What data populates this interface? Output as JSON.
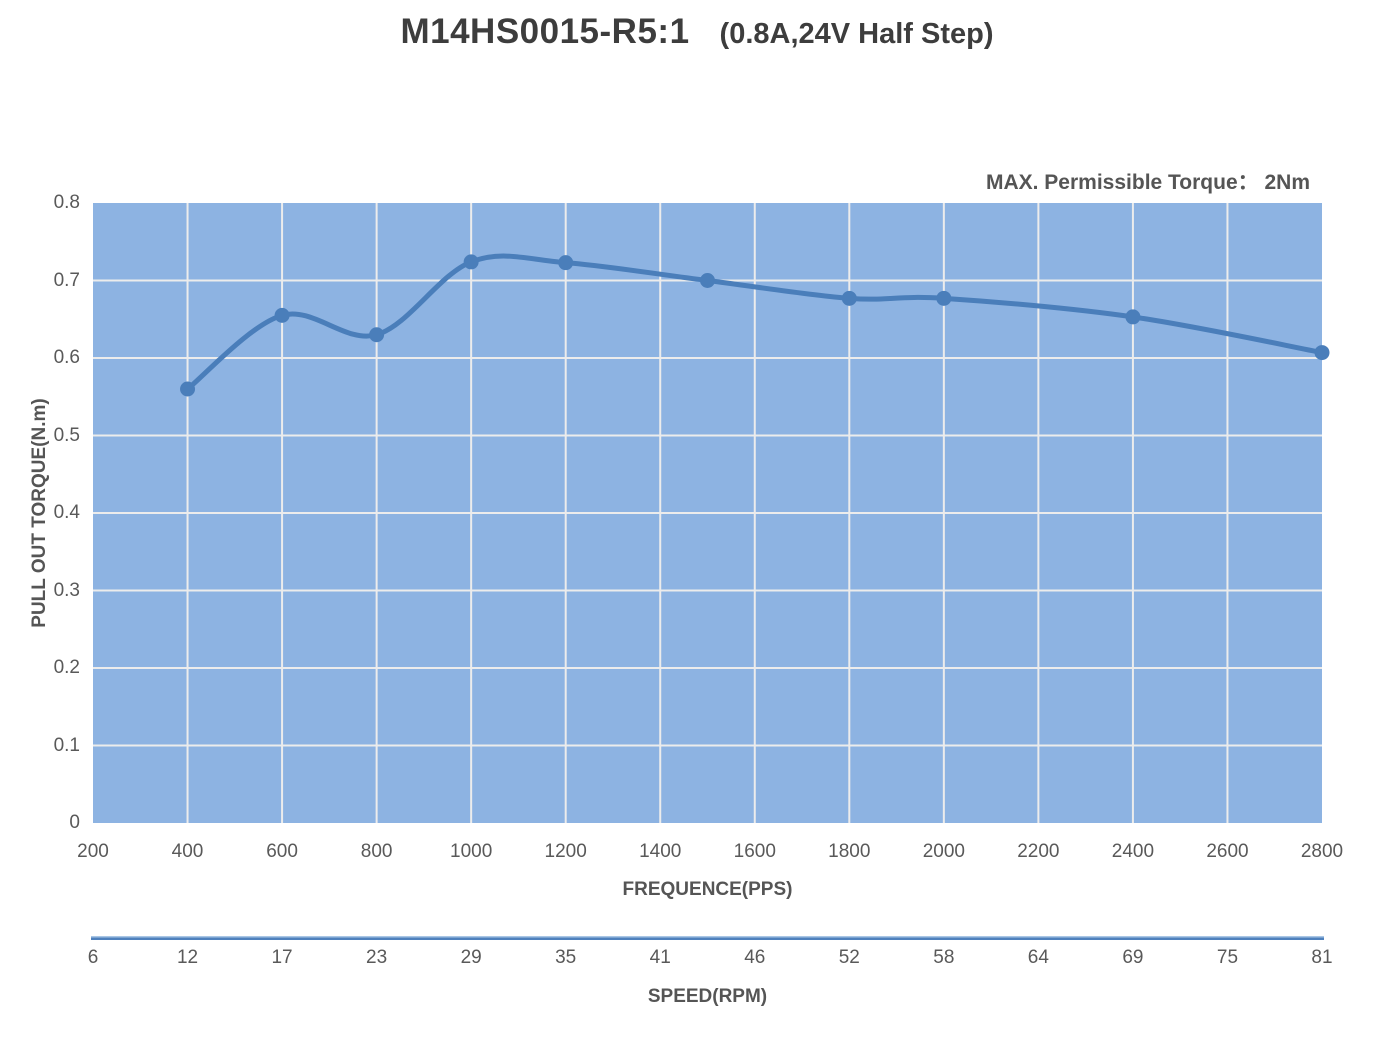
{
  "title": {
    "model": "M14HS0015-R5:1",
    "condition": "(0.8A,24V Half Step)"
  },
  "annotation": {
    "text": "MAX. Permissible Torque：  2Nm"
  },
  "chart_data": {
    "type": "line",
    "title": "M14HS0015-R5:1 (0.8A,24V Half Step)",
    "xlabel": "FREQUENCE(PPS)",
    "ylabel": "PULL OUT TORQUE(N.m)",
    "x2label": "SPEED(RPM)",
    "xlim": [
      200,
      2800
    ],
    "ylim": [
      0,
      0.8
    ],
    "grid": true,
    "legend": "none",
    "smooth": true,
    "x_ticks": [
      200,
      400,
      600,
      800,
      1000,
      1200,
      1400,
      1600,
      1800,
      2000,
      2200,
      2400,
      2600,
      2800
    ],
    "y_ticks": [
      0,
      0.1,
      0.2,
      0.3,
      0.4,
      0.5,
      0.6,
      0.7,
      0.8
    ],
    "x2_ticks": [
      6,
      12,
      17,
      23,
      29,
      35,
      41,
      46,
      52,
      58,
      64,
      69,
      75,
      81
    ],
    "series": [
      {
        "name": "pull-out-torque",
        "x": [
          400,
          600,
          800,
          1000,
          1200,
          1500,
          1800,
          2000,
          2400,
          2800
        ],
        "y": [
          0.56,
          0.655,
          0.63,
          0.724,
          0.723,
          0.7,
          0.677,
          0.677,
          0.653,
          0.607
        ]
      }
    ],
    "colors": {
      "plot_background": "#8db3e2",
      "line": "#4a7eba",
      "marker": "#4a7eba",
      "gridline": "#ececec"
    }
  }
}
